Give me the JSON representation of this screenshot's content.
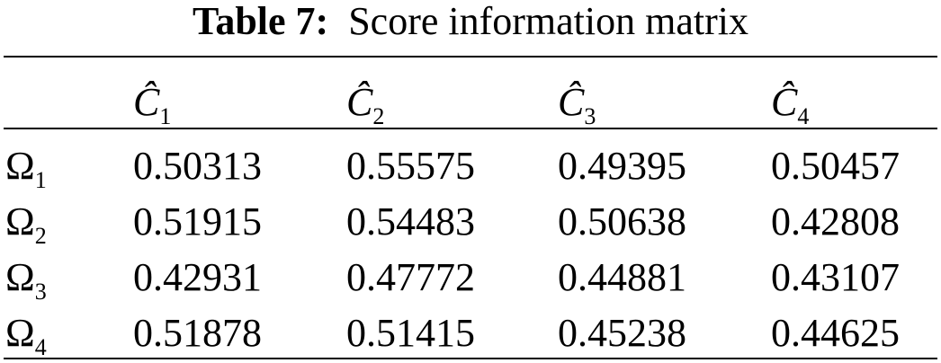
{
  "caption": {
    "label": "Table 7:",
    "text": "Score information matrix"
  },
  "table": {
    "header": [
      {
        "symbol": "Ĉ",
        "subscript": "1"
      },
      {
        "symbol": "Ĉ",
        "subscript": "2"
      },
      {
        "symbol": "Ĉ",
        "subscript": "3"
      },
      {
        "symbol": "Ĉ",
        "subscript": "4"
      }
    ],
    "rows": [
      {
        "label": {
          "symbol": "Ω",
          "subscript": "1"
        },
        "cells": [
          "0.50313",
          "0.55575",
          "0.49395",
          "0.50457"
        ]
      },
      {
        "label": {
          "symbol": "Ω",
          "subscript": "2"
        },
        "cells": [
          "0.51915",
          "0.54483",
          "0.50638",
          "0.42808"
        ]
      },
      {
        "label": {
          "symbol": "Ω",
          "subscript": "3"
        },
        "cells": [
          "0.42931",
          "0.47772",
          "0.44881",
          "0.43107"
        ]
      },
      {
        "label": {
          "symbol": "Ω",
          "subscript": "4"
        },
        "cells": [
          "0.51878",
          "0.51415",
          "0.45238",
          "0.44625"
        ]
      }
    ]
  }
}
